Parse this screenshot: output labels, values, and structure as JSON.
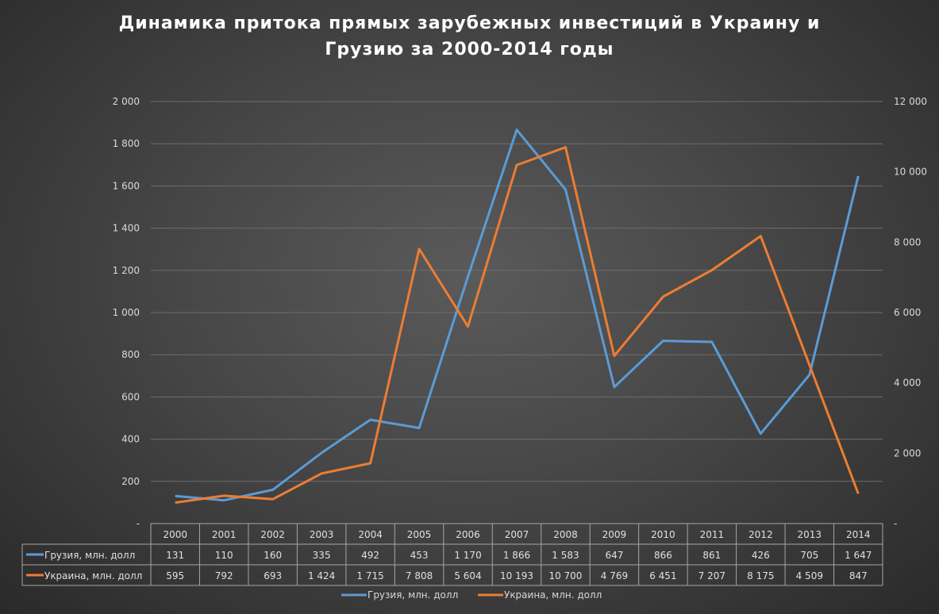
{
  "chart_data": {
    "type": "line",
    "title_line1": "Динамика   притока  прямых зарубежных инвестиций в Украину и",
    "title_line2": "Грузию за  2000-2014 годы",
    "categories": [
      "2000",
      "2001",
      "2002",
      "2003",
      "2004",
      "2005",
      "2006",
      "2007",
      "2008",
      "2009",
      "2010",
      "2011",
      "2012",
      "2013",
      "2014"
    ],
    "series": [
      {
        "name": "Грузия, млн. долл",
        "axis": "left",
        "color": "#5b9bd5",
        "values": [
          131,
          110,
          160,
          335,
          492,
          453,
          1170,
          1866,
          1583,
          647,
          866,
          861,
          426,
          705,
          1647
        ],
        "labels": [
          "131",
          "110",
          "160",
          "335",
          "492",
          "453",
          "1 170",
          "1 866",
          "1 583",
          "647",
          "866",
          "861",
          "426",
          "705",
          "1 647"
        ]
      },
      {
        "name": "Украина, млн. долл",
        "axis": "right",
        "color": "#ed7d31",
        "values": [
          595,
          792,
          693,
          1424,
          1715,
          7808,
          5604,
          10193,
          10700,
          4769,
          6451,
          7207,
          8175,
          4509,
          847
        ],
        "labels": [
          "595",
          "792",
          "693",
          "1 424",
          "1 715",
          "7 808",
          "5 604",
          "10 193",
          "10 700",
          "4 769",
          "6 451",
          "7 207",
          "8 175",
          "4 509",
          "847"
        ]
      }
    ],
    "left_axis": {
      "ylim": [
        0,
        2000
      ],
      "ticks": [
        "-",
        "200",
        "400",
        "600",
        "800",
        "1 000",
        "1 200",
        "1 400",
        "1 600",
        "1 800",
        "2 000"
      ]
    },
    "right_axis": {
      "ylim": [
        0,
        12000
      ],
      "ticks": [
        "-",
        "2 000",
        "4 000",
        "6 000",
        "8 000",
        "10 000",
        "12 000"
      ]
    },
    "grid": true,
    "legend_placement": "bottom",
    "data_table": true
  }
}
